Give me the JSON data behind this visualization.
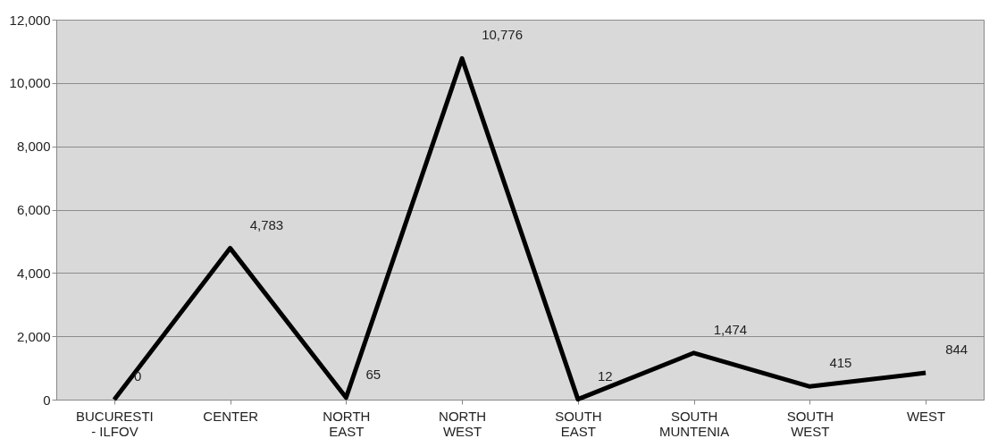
{
  "chart_data": {
    "type": "line",
    "categories": [
      "BUCURESTI - ILFOV",
      "CENTER",
      "NORTH EAST",
      "NORTH WEST",
      "SOUTH EAST",
      "SOUTH MUNTENIA",
      "SOUTH WEST",
      "WEST"
    ],
    "series": [
      {
        "color": "#000000",
        "values": [
          0,
          4783,
          65,
          10776,
          12,
          1474,
          415,
          844
        ],
        "value_labels": [
          "0",
          "4,783",
          "65",
          "10,776",
          "12",
          "1,474",
          "415",
          "844"
        ]
      }
    ],
    "ylim": [
      0,
      12000
    ],
    "yticks": [
      {
        "value": 0,
        "label": "0"
      },
      {
        "value": 2000,
        "label": "2,000"
      },
      {
        "value": 4000,
        "label": "4,000"
      },
      {
        "value": 6000,
        "label": "6,000"
      },
      {
        "value": 8000,
        "label": "8,000"
      },
      {
        "value": 10000,
        "label": "10,000"
      },
      {
        "value": 12000,
        "label": "12,000"
      }
    ],
    "grid": "y",
    "marker": "none",
    "line_style": "solid"
  }
}
